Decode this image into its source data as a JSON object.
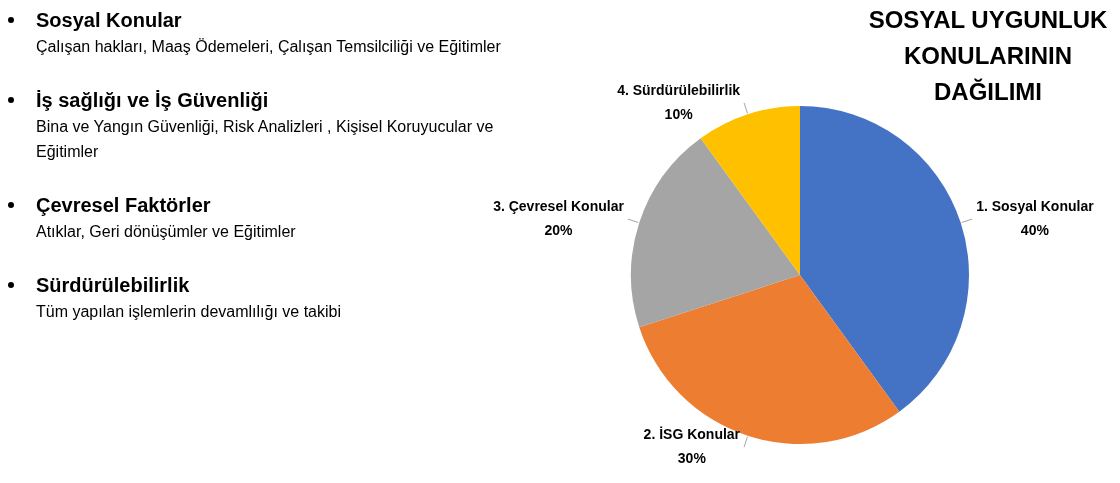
{
  "chart_data": [
    {
      "type": "other",
      "annotations": [
        "Sosyal Konular",
        "Çalışan hakları, Maaş Ödemeleri, Çalışan Temsilciliği ve Eğitimler",
        "İş sağlığı ve İş Güvenliği",
        "Bina ve Yangın Güvenliği, Risk Analizleri , Kişisel Koruyucular ve Eğitimler",
        "Çevresel Faktörler",
        "Atıklar, Geri dönüşümler ve Eğitimler",
        "Sürdürülebilirlik",
        "Tüm yapılan işlemlerin devamlılığı ve takibi"
      ]
    },
    {
      "type": "pie",
      "title": "SOSYAL UYGUNLUK KONULARININ DAĞILIMI",
      "categories": [
        "1. Sosyal Konular",
        "2. İSG Konular",
        "3. Çevresel Konular",
        "4. Sürdürülebilirlik"
      ],
      "values": [
        40,
        30,
        20,
        10
      ],
      "colors": [
        "#4472c4",
        "#ed7d31",
        "#a5a5a5",
        "#ffc000"
      ],
      "value_labels": [
        "40%",
        "30%",
        "20%",
        "10%"
      ]
    }
  ]
}
